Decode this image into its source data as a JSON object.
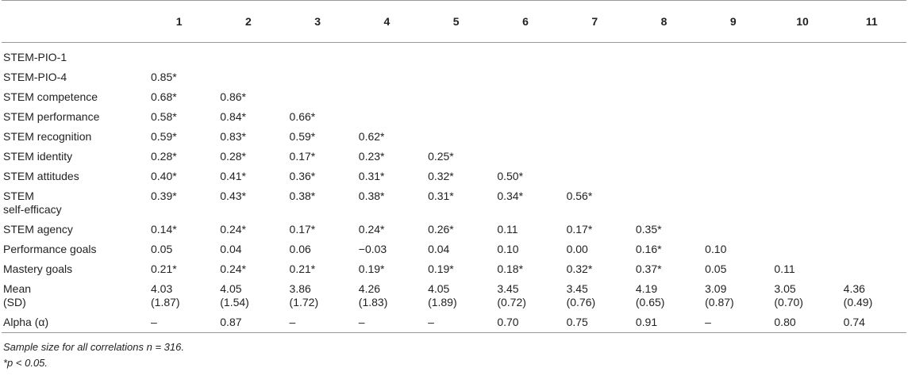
{
  "table": {
    "header": [
      "1",
      "2",
      "3",
      "4",
      "5",
      "6",
      "7",
      "8",
      "9",
      "10",
      "11"
    ],
    "rows": [
      {
        "label": "STEM-PIO-1",
        "cells": []
      },
      {
        "label": "STEM-PIO-4",
        "cells": [
          "0.85*"
        ]
      },
      {
        "label": "STEM competence",
        "cells": [
          "0.68*",
          "0.86*"
        ]
      },
      {
        "label": "STEM performance",
        "cells": [
          "0.58*",
          "0.84*",
          "0.66*"
        ]
      },
      {
        "label": "STEM recognition",
        "cells": [
          "0.59*",
          "0.83*",
          "0.59*",
          "0.62*"
        ]
      },
      {
        "label": "STEM identity",
        "cells": [
          "0.28*",
          "0.28*",
          "0.17*",
          "0.23*",
          "0.25*"
        ]
      },
      {
        "label": "STEM attitudes",
        "cells": [
          "0.40*",
          "0.41*",
          "0.36*",
          "0.31*",
          "0.32*",
          "0.50*"
        ]
      },
      {
        "label": "STEM\nself-efficacy",
        "cells": [
          "0.39*",
          "0.43*",
          "0.38*",
          "0.38*",
          "0.31*",
          "0.34*",
          "0.56*"
        ]
      },
      {
        "label": "STEM agency",
        "cells": [
          "0.14*",
          "0.24*",
          "0.17*",
          "0.24*",
          "0.26*",
          "0.11",
          "0.17*",
          "0.35*"
        ]
      },
      {
        "label": "Performance goals",
        "cells": [
          "0.05",
          "0.04",
          "0.06",
          "−0.03",
          "0.04",
          "0.10",
          "0.00",
          "0.16*",
          "0.10"
        ]
      },
      {
        "label": "Mastery goals",
        "cells": [
          "0.21*",
          "0.24*",
          "0.21*",
          "0.19*",
          "0.19*",
          "0.18*",
          "0.32*",
          "0.37*",
          "0.05",
          "0.11"
        ]
      },
      {
        "label": "Mean\n(SD)",
        "cells": [
          "4.03\n(1.87)",
          "4.05\n(1.54)",
          "3.86\n(1.72)",
          "4.26\n(1.83)",
          "4.05\n(1.89)",
          "3.45\n(0.72)",
          "3.45\n(0.76)",
          "4.19\n(0.65)",
          "3.09\n(0.87)",
          "3.05\n(0.70)",
          "4.36\n(0.49)"
        ]
      },
      {
        "label": "Alpha (α)",
        "cells": [
          "–",
          "0.87",
          "–",
          "–",
          "–",
          "0.70",
          "0.75",
          "0.91",
          "–",
          "0.80",
          "0.74"
        ]
      }
    ]
  },
  "notes": [
    "Sample size for all correlations n = 316.",
    "*p < 0.05."
  ]
}
